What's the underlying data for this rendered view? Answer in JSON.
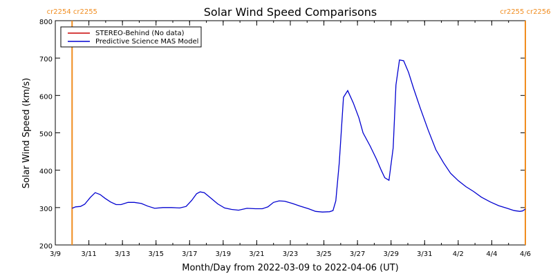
{
  "chart_data": {
    "type": "line",
    "title": "Solar Wind Speed Comparisons",
    "xlabel": "Month/Day from 2022-03-09 to 2022-04-06 (UT)",
    "ylabel": "Solar Wind Speed (km/s)",
    "ylim": [
      200,
      800
    ],
    "xlim": [
      "2022-03-09",
      "2022-04-06"
    ],
    "yticks": [
      200,
      300,
      400,
      500,
      600,
      700,
      800
    ],
    "xticks": [
      {
        "date": "2022-03-09",
        "label": "3/9"
      },
      {
        "date": "2022-03-11",
        "label": "3/11"
      },
      {
        "date": "2022-03-13",
        "label": "3/13"
      },
      {
        "date": "2022-03-15",
        "label": "3/15"
      },
      {
        "date": "2022-03-17",
        "label": "3/17"
      },
      {
        "date": "2022-03-19",
        "label": "3/19"
      },
      {
        "date": "2022-03-21",
        "label": "3/21"
      },
      {
        "date": "2022-03-23",
        "label": "3/23"
      },
      {
        "date": "2022-03-25",
        "label": "3/25"
      },
      {
        "date": "2022-03-27",
        "label": "3/27"
      },
      {
        "date": "2022-03-29",
        "label": "3/29"
      },
      {
        "date": "2022-03-31",
        "label": "3/31"
      },
      {
        "date": "2022-04-02",
        "label": "4/2"
      },
      {
        "date": "2022-04-04",
        "label": "4/4"
      },
      {
        "date": "2022-04-06",
        "label": "4/6"
      }
    ],
    "legend_position": "top-left",
    "legend": [
      {
        "label": "STEREO-Behind (No data)",
        "color": "#c80000"
      },
      {
        "label": "Predictive Science MAS Model",
        "color": "#0000d0"
      }
    ],
    "series": [
      {
        "name": "Predictive Science MAS Model",
        "color": "#0000d0",
        "points": [
          [
            "2022-03-10T00:00",
            298
          ],
          [
            "2022-03-10T05:00",
            302
          ],
          [
            "2022-03-10T12:00",
            303
          ],
          [
            "2022-03-10T18:00",
            309
          ],
          [
            "2022-03-11T02:00",
            327
          ],
          [
            "2022-03-11T09:00",
            340
          ],
          [
            "2022-03-11T16:00",
            335
          ],
          [
            "2022-03-11T23:00",
            325
          ],
          [
            "2022-03-12T07:00",
            315
          ],
          [
            "2022-03-12T15:00",
            308
          ],
          [
            "2022-03-12T22:00",
            308
          ],
          [
            "2022-03-13T08:00",
            314
          ],
          [
            "2022-03-13T17:00",
            314
          ],
          [
            "2022-03-14T03:00",
            311
          ],
          [
            "2022-03-14T12:00",
            304
          ],
          [
            "2022-03-14T22:00",
            298
          ],
          [
            "2022-03-15T10:00",
            300
          ],
          [
            "2022-03-15T22:00",
            300
          ],
          [
            "2022-03-16T10:00",
            299
          ],
          [
            "2022-03-16T19:00",
            303
          ],
          [
            "2022-03-17T03:00",
            319
          ],
          [
            "2022-03-17T10:00",
            337
          ],
          [
            "2022-03-17T15:00",
            342
          ],
          [
            "2022-03-17T21:00",
            340
          ],
          [
            "2022-03-18T06:00",
            326
          ],
          [
            "2022-03-18T16:00",
            310
          ],
          [
            "2022-03-19T02:00",
            299
          ],
          [
            "2022-03-19T12:00",
            295
          ],
          [
            "2022-03-19T22:00",
            293
          ],
          [
            "2022-03-20T10:00",
            298
          ],
          [
            "2022-03-20T22:00",
            297
          ],
          [
            "2022-03-21T08:00",
            297
          ],
          [
            "2022-03-21T16:00",
            302
          ],
          [
            "2022-03-22T00:00",
            314
          ],
          [
            "2022-03-22T08:00",
            318
          ],
          [
            "2022-03-22T16:00",
            317
          ],
          [
            "2022-03-23T03:00",
            311
          ],
          [
            "2022-03-23T14:00",
            304
          ],
          [
            "2022-03-24T02:00",
            297
          ],
          [
            "2022-03-24T12:00",
            290
          ],
          [
            "2022-03-24T22:00",
            288
          ],
          [
            "2022-03-25T08:00",
            289
          ],
          [
            "2022-03-25T13:00",
            292
          ],
          [
            "2022-03-25T17:00",
            318
          ],
          [
            "2022-03-25T22:00",
            420
          ],
          [
            "2022-03-26T04:00",
            595
          ],
          [
            "2022-03-26T10:00",
            613
          ],
          [
            "2022-03-26T18:00",
            580
          ],
          [
            "2022-03-27T02:00",
            540
          ],
          [
            "2022-03-27T08:00",
            500
          ],
          [
            "2022-03-27T18:00",
            465
          ],
          [
            "2022-03-28T03:00",
            430
          ],
          [
            "2022-03-28T10:00",
            400
          ],
          [
            "2022-03-28T15:00",
            380
          ],
          [
            "2022-03-28T21:00",
            373
          ],
          [
            "2022-03-29T03:00",
            460
          ],
          [
            "2022-03-29T07:00",
            628
          ],
          [
            "2022-03-29T12:00",
            695
          ],
          [
            "2022-03-29T18:00",
            693
          ],
          [
            "2022-03-30T01:00",
            662
          ],
          [
            "2022-03-30T08:00",
            620
          ],
          [
            "2022-03-30T18:00",
            565
          ],
          [
            "2022-03-31T05:00",
            508
          ],
          [
            "2022-03-31T16:00",
            455
          ],
          [
            "2022-04-01T03:00",
            420
          ],
          [
            "2022-04-01T13:00",
            392
          ],
          [
            "2022-04-02T00:00",
            372
          ],
          [
            "2022-04-02T11:00",
            356
          ],
          [
            "2022-04-02T22:00",
            343
          ],
          [
            "2022-04-03T09:00",
            328
          ],
          [
            "2022-04-03T22:00",
            315
          ],
          [
            "2022-04-04T10:00",
            305
          ],
          [
            "2022-04-04T22:00",
            298
          ],
          [
            "2022-04-05T08:00",
            292
          ],
          [
            "2022-04-05T16:00",
            290
          ],
          [
            "2022-04-05T20:00",
            291
          ],
          [
            "2022-04-06T00:00",
            296
          ]
        ]
      }
    ],
    "markers": [
      {
        "date": "2022-03-10T00:00",
        "label": "cr2254 cr2255",
        "color": "#f08c1e"
      },
      {
        "date": "2022-04-06T00:00",
        "label": "cr2255 cr2256",
        "color": "#f08c1e"
      }
    ]
  }
}
